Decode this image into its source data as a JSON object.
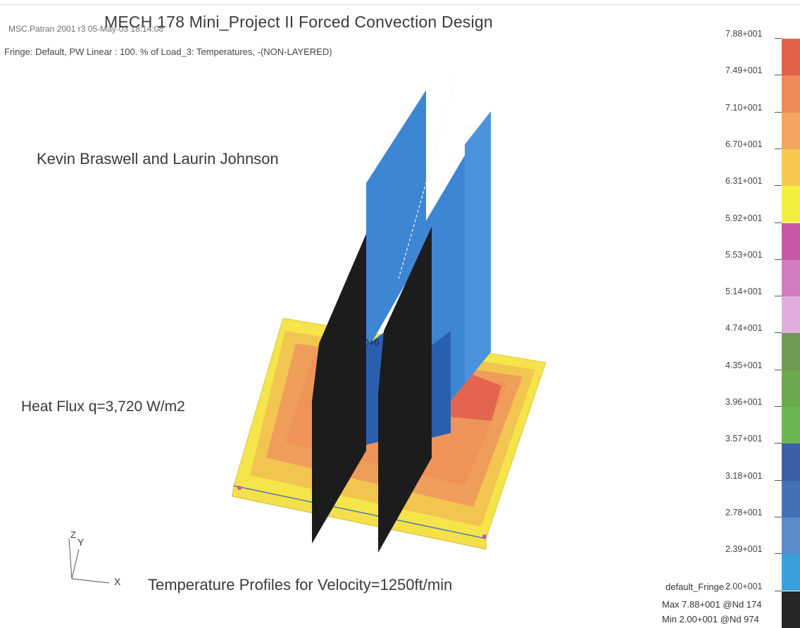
{
  "header": {
    "title": "MECH 178 Mini_Project II Forced Convection Design",
    "source": "MSC.Patran 2001 r3 05-May-03 18:14:08",
    "fringe": "Fringe: Default, PW Linear : 100. % of Load_3: Temperatures, -(NON-LAYERED)"
  },
  "annotations": {
    "authors": "Kevin Braswell and Laurin Johnson",
    "heat_flux": "Heat Flux q=3,720 W/m2",
    "caption": "Temperature Profiles for Velocity=1250ft/min",
    "node_tag": "300+0"
  },
  "axes_triad": {
    "z": "Z",
    "y": "Y",
    "x": "X"
  },
  "legend": {
    "ticks": [
      "7.88+001",
      "7.49+001",
      "7.10+001",
      "6.70+001",
      "6.31+001",
      "5.92+001",
      "5.53+001",
      "5.14+001",
      "4.74+001",
      "4.35+001",
      "3.96+001",
      "3.57+001",
      "3.18+001",
      "2.78+001",
      "2.39+001",
      "2.00+001"
    ],
    "colors": [
      "#e06048",
      "#ec8a55",
      "#f2a560",
      "#f6c94e",
      "#f3ee3e",
      "#c857a8",
      "#d27bc0",
      "#e2ace0",
      "#6f9a55",
      "#6aa94d",
      "#6cb650",
      "#3b5fa8",
      "#4570b8",
      "#5b8bcb",
      "#3aa0dc",
      "#262626"
    ],
    "footer_label": "default_Fringe :",
    "max_line": "Max 7.88+001 @Nd 174",
    "min_line": "Min 2.00+001 @Nd 974"
  },
  "scene_colors": {
    "fin_blue": "#3d86d4",
    "fin_blue_dark": "#2a5fb0",
    "fin_black": "#1c1c1c",
    "plate_yellow": "#f5e44a",
    "plate_orange": "#ef9d5a",
    "plate_hot": "#e36550",
    "plate_mid": "#f2c450"
  }
}
